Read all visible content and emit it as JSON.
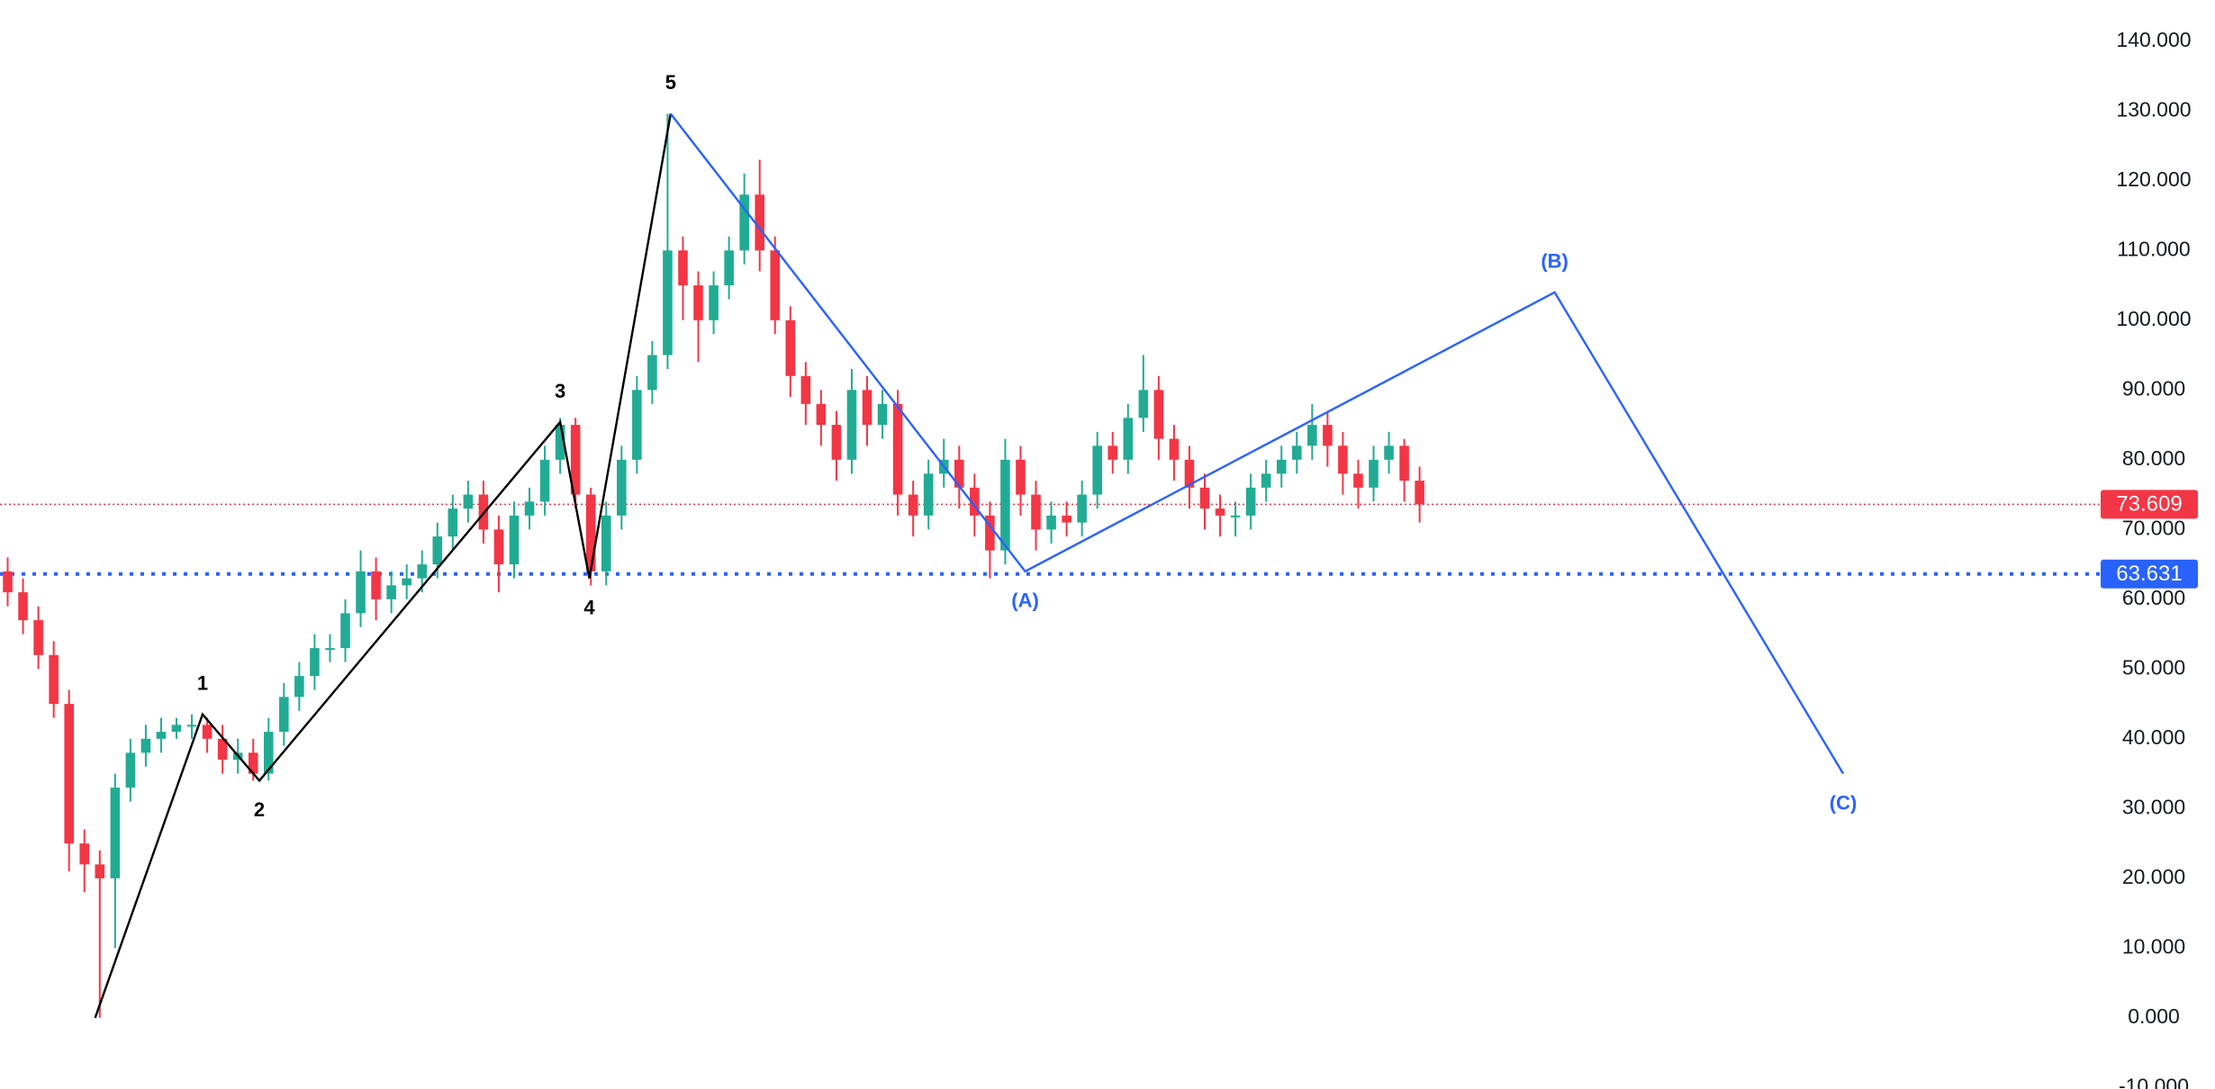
{
  "chart_data": {
    "type": "candlestick",
    "xlim": [
      -0.5,
      136.2
    ],
    "ylim": [
      -10.2,
      145.9
    ],
    "grid": false,
    "yticks": [
      {
        "value": -10,
        "label": "-10.000"
      },
      {
        "value": 0,
        "label": "0.000"
      },
      {
        "value": 10,
        "label": "10.000"
      },
      {
        "value": 20,
        "label": "20.000"
      },
      {
        "value": 30,
        "label": "30.000"
      },
      {
        "value": 40,
        "label": "40.000"
      },
      {
        "value": 50,
        "label": "50.000"
      },
      {
        "value": 60,
        "label": "60.000"
      },
      {
        "value": 70,
        "label": "70.000"
      },
      {
        "value": 80,
        "label": "80.000"
      },
      {
        "value": 90,
        "label": "90.000"
      },
      {
        "value": 100,
        "label": "100.000"
      },
      {
        "value": 110,
        "label": "110.000"
      },
      {
        "value": 120,
        "label": "120.000"
      },
      {
        "value": 130,
        "label": "130.000"
      },
      {
        "value": 140,
        "label": "140.000"
      }
    ],
    "candles": {
      "up_color": "#22ab94",
      "down_color": "#f23645",
      "open": [
        64,
        61,
        57,
        52,
        45,
        25,
        22,
        20,
        33,
        38,
        40,
        41,
        42,
        42,
        40,
        37,
        38,
        35,
        41,
        46,
        49,
        53,
        53,
        58,
        64,
        60,
        62,
        63,
        65,
        69,
        73,
        75,
        70,
        65,
        72,
        74,
        80,
        85,
        75,
        64,
        72,
        80,
        90,
        95,
        110,
        105,
        100,
        105,
        110,
        118,
        110,
        100,
        92,
        88,
        85,
        80,
        90,
        85,
        88,
        75,
        72,
        78,
        80,
        76,
        72,
        67,
        80,
        75,
        70,
        72,
        71,
        75,
        82,
        80,
        86,
        90,
        83,
        80,
        76,
        73,
        72,
        72,
        76,
        78,
        80,
        82,
        85,
        82,
        78,
        76,
        80,
        82,
        77
      ],
      "high": [
        66,
        63,
        59,
        54,
        47,
        27,
        24,
        35,
        40,
        42,
        43,
        43,
        43.5,
        43,
        42,
        40,
        40,
        43,
        48,
        51,
        55,
        55,
        60,
        67,
        66,
        64,
        65,
        67,
        71,
        75,
        77,
        77,
        72,
        74,
        76,
        82,
        86,
        86,
        76,
        74,
        82,
        92,
        97,
        129.6,
        112,
        107,
        107,
        112,
        121,
        123,
        112,
        102,
        94,
        90,
        87,
        93,
        92,
        90,
        90,
        77,
        80,
        83,
        82,
        78,
        74,
        83,
        82,
        77,
        74,
        74,
        77,
        84,
        84,
        88,
        95,
        92,
        85,
        82,
        78,
        75,
        74,
        78,
        80,
        82,
        84,
        88,
        87,
        84,
        80,
        82,
        84,
        83,
        79
      ],
      "low": [
        59,
        55,
        50,
        43,
        21,
        18,
        0,
        10,
        31,
        36,
        38,
        40,
        40,
        38,
        35,
        35,
        34,
        34,
        39,
        44,
        47,
        51,
        51,
        56,
        57,
        58,
        60,
        61,
        63,
        67,
        71,
        68,
        61,
        63,
        70,
        72,
        78,
        73,
        62,
        62,
        70,
        78,
        88,
        93,
        100,
        94,
        98,
        103,
        108,
        107,
        98,
        89,
        85,
        82,
        77,
        78,
        82,
        83,
        72,
        69,
        70,
        76,
        73,
        69,
        63,
        65,
        72,
        67,
        68,
        69,
        69,
        73,
        78,
        78,
        84,
        80,
        77,
        73,
        70,
        69,
        69,
        70,
        74,
        76,
        78,
        80,
        79,
        75,
        73,
        74,
        78,
        74,
        71
      ],
      "close": [
        61,
        57,
        52,
        45,
        25,
        22,
        20,
        33,
        38,
        40,
        41,
        42,
        42,
        40,
        37,
        38,
        35,
        41,
        46,
        49,
        53,
        53,
        58,
        64,
        60,
        62,
        63,
        65,
        69,
        73,
        75,
        70,
        65,
        72,
        74,
        80,
        85,
        75,
        64,
        72,
        80,
        90,
        95,
        110,
        105,
        100,
        105,
        110,
        118,
        110,
        100,
        92,
        88,
        85,
        80,
        90,
        85,
        88,
        75,
        72,
        78,
        80,
        76,
        72,
        67,
        80,
        75,
        70,
        72,
        71,
        75,
        82,
        80,
        86,
        90,
        83,
        80,
        76,
        73,
        72,
        72,
        76,
        78,
        80,
        82,
        85,
        82,
        78,
        76,
        80,
        82,
        77,
        73.6
      ]
    },
    "waves": [
      {
        "color": "#000000",
        "x": [
          5.7,
          12.7,
          16.4,
          36.0,
          37.9,
          43.2
        ],
        "values": [
          0,
          43.5,
          34,
          85.4,
          63,
          129.6
        ],
        "labels": [
          null,
          "1",
          "2",
          "3",
          "4",
          "5"
        ]
      },
      {
        "color": "#2962ff",
        "x": [
          43.2,
          66.3,
          100.8,
          119.6
        ],
        "values": [
          129.6,
          64,
          104,
          35
        ],
        "labels": [
          null,
          "(A)",
          "(B)",
          "(C)"
        ]
      }
    ],
    "price_lines": [
      {
        "value": 73.609,
        "color": "#f23645",
        "style": "thin"
      },
      {
        "value": 63.631,
        "color": "#2962ff",
        "style": "thick"
      }
    ]
  }
}
